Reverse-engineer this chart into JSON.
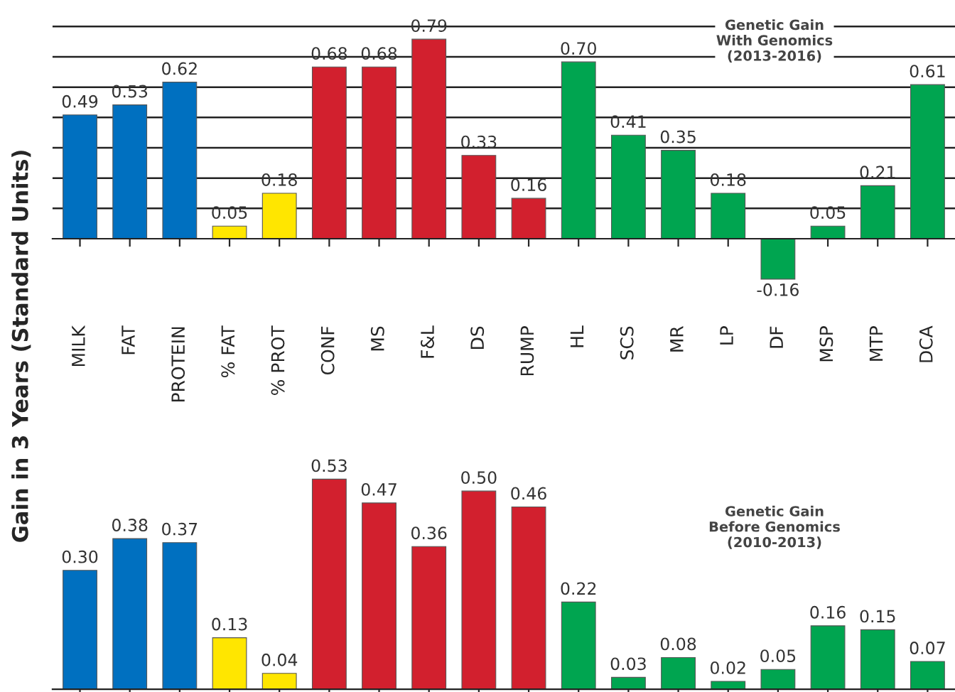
{
  "chart_data": [
    {
      "type": "bar",
      "ylabel": "Gain in 3 Years (Standard Units)",
      "categories": [
        "MILK",
        "FAT",
        "PROTEIN",
        "% FAT",
        "% PROT",
        "CONF",
        "MS",
        "F&L",
        "DS",
        "RUMP",
        "HL",
        "SCS",
        "MR",
        "LP",
        "DF",
        "MSP",
        "MTP",
        "DCA"
      ],
      "values": [
        0.49,
        0.53,
        0.62,
        0.05,
        0.18,
        0.68,
        0.68,
        0.79,
        0.33,
        0.16,
        0.7,
        0.41,
        0.35,
        0.18,
        -0.16,
        0.05,
        0.21,
        0.61
      ],
      "colors": [
        "#0070c0",
        "#0070c0",
        "#0070c0",
        "#ffe600",
        "#ffe600",
        "#d2202e",
        "#d2202e",
        "#d2202e",
        "#d2202e",
        "#d2202e",
        "#00a550",
        "#00a550",
        "#00a550",
        "#00a550",
        "#00a550",
        "#00a550",
        "#00a550",
        "#00a550"
      ],
      "value_labels": [
        "0.49",
        "0.53",
        "0.62",
        "0.05",
        "0.18",
        "0.68",
        "0.68",
        "0.79",
        "0.33",
        "0.16",
        "0.70",
        "0.41",
        "0.35",
        "0.18",
        "-0.16",
        "0.05",
        "0.21",
        "0.61"
      ],
      "yticks": [
        {
          "value": 0.12,
          "label": null
        },
        {
          "value": 0.24,
          "label": null
        },
        {
          "value": 0.36,
          "label": null
        },
        {
          "value": 0.48,
          "label": null
        },
        {
          "value": 0.6,
          "label": null
        },
        {
          "value": 0.72,
          "label": null
        },
        {
          "value": 0.84,
          "label": null
        }
      ],
      "grid": "y",
      "tick_labels": "x",
      "annotations": [
        "Genetic Gain\nWith Genomics\n(2013-2016)"
      ]
    },
    {
      "type": "bar",
      "categories": [
        null,
        null,
        null,
        null,
        null,
        null,
        null,
        null,
        null,
        null,
        null,
        null,
        null,
        null,
        null,
        null,
        null,
        null
      ],
      "values": [
        0.3,
        0.38,
        0.37,
        0.13,
        0.04,
        0.53,
        0.47,
        0.36,
        0.5,
        0.46,
        0.22,
        0.03,
        0.08,
        0.02,
        0.05,
        0.16,
        0.15,
        0.07
      ],
      "colors": [
        "#0070c0",
        "#0070c0",
        "#0070c0",
        "#ffe600",
        "#ffe600",
        "#d2202e",
        "#d2202e",
        "#d2202e",
        "#d2202e",
        "#d2202e",
        "#00a550",
        "#00a550",
        "#00a550",
        "#00a550",
        "#00a550",
        "#00a550",
        "#00a550",
        "#00a550"
      ],
      "value_labels": [
        "0.30",
        "0.38",
        "0.37",
        "0.13",
        "0.04",
        "0.53",
        "0.47",
        "0.36",
        "0.50",
        "0.46",
        "0.22",
        "0.03",
        "0.08",
        "0.02",
        "0.05",
        "0.16",
        "0.15",
        "0.07"
      ],
      "tick_labels": false,
      "annotations": [
        "Genetic Gain\nBefore Genomics\n(2010-2013)"
      ]
    }
  ]
}
